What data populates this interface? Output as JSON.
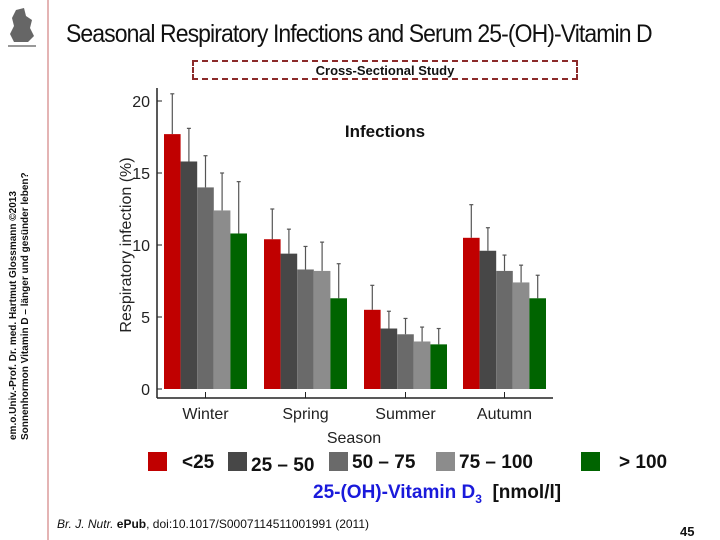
{
  "slide": {
    "title": "Seasonal Respiratory Infections and Serum 25-(OH)-Vitamin D",
    "subtitle_box": "Cross-Sectional Study",
    "side_line1": "em.o.Univ.-Prof. Dr. med. Hartmut Glossmann ©2013",
    "side_line2": "Sonnenhormon Vitamin D – länger und gesünder leben?",
    "reference_journal": "Br. J. Nutr.",
    "reference_epub": "ePub",
    "reference_rest": ", doi:10.1017/S0007114511001991 (2011)",
    "page_number": "45",
    "logo_text": "Gen.Stock Prodgn.",
    "legend_unit_prefix": "25-(OH)-Vitamin D",
    "legend_unit_sub": "3",
    "legend_unit_suffix": "[nmol/l]"
  },
  "chart_data": {
    "type": "bar",
    "title": "Infections",
    "xlabel": "Season",
    "ylabel": "Respiratory infection (%)",
    "ylim": [
      0,
      20
    ],
    "yticks": [
      "0",
      "5",
      "10",
      "15",
      "20"
    ],
    "categories": [
      "Winter",
      "Spring",
      "Summer",
      "Autumn"
    ],
    "grid": false,
    "legend_placement": "bottom",
    "series": [
      {
        "name": "<25",
        "color": "#c00000",
        "values": [
          17.7,
          10.4,
          5.5,
          10.5
        ],
        "error_upper": [
          20.5,
          12.5,
          7.2,
          12.8
        ]
      },
      {
        "name": "25 – 50",
        "color": "#474747",
        "values": [
          15.8,
          9.4,
          4.2,
          9.6
        ],
        "error_upper": [
          18.1,
          11.1,
          5.4,
          11.2
        ]
      },
      {
        "name": "50 – 75",
        "color": "#6a6a6a",
        "values": [
          14.0,
          8.3,
          3.8,
          8.2
        ],
        "error_upper": [
          16.2,
          9.9,
          4.9,
          9.3
        ]
      },
      {
        "name": "75 – 100",
        "color": "#8c8c8c",
        "values": [
          12.4,
          8.2,
          3.3,
          7.4
        ],
        "error_upper": [
          15.0,
          10.2,
          4.3,
          8.6
        ]
      },
      {
        "name": "> 100",
        "color": "#006400",
        "values": [
          10.8,
          6.3,
          3.1,
          6.3
        ],
        "error_upper": [
          14.4,
          8.7,
          4.2,
          7.9
        ]
      }
    ]
  }
}
